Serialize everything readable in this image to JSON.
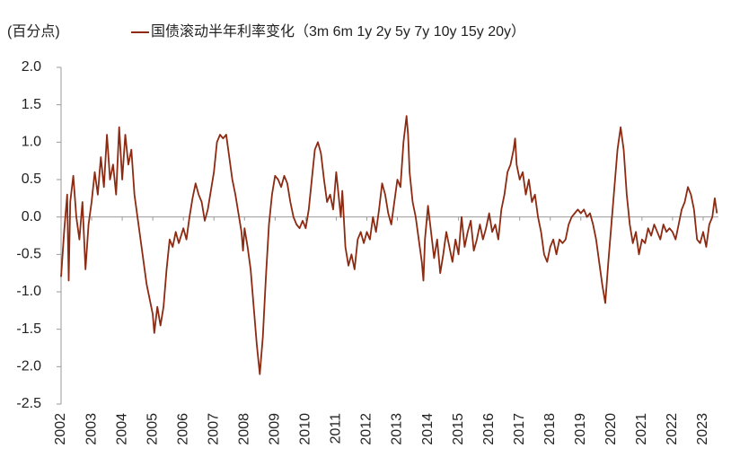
{
  "chart_data": {
    "type": "line",
    "y_label": "(百分点)",
    "series": [
      {
        "name": "国债滚动半年利率变化（3m 6m 1y 2y 5y 7y 10y 15y 20y）",
        "color": "#8c2a12",
        "x": [
          2002.0,
          2002.1,
          2002.2,
          2002.25,
          2002.3,
          2002.4,
          2002.5,
          2002.6,
          2002.7,
          2002.8,
          2002.9,
          2003.0,
          2003.1,
          2003.2,
          2003.3,
          2003.4,
          2003.5,
          2003.6,
          2003.7,
          2003.8,
          2003.9,
          2004.0,
          2004.1,
          2004.2,
          2004.3,
          2004.4,
          2004.5,
          2004.6,
          2004.7,
          2004.8,
          2004.9,
          2005.0,
          2005.05,
          2005.15,
          2005.25,
          2005.35,
          2005.45,
          2005.55,
          2005.65,
          2005.75,
          2005.85,
          2006.0,
          2006.1,
          2006.2,
          2006.3,
          2006.4,
          2006.5,
          2006.6,
          2006.7,
          2006.8,
          2006.9,
          2007.0,
          2007.1,
          2007.2,
          2007.3,
          2007.4,
          2007.5,
          2007.6,
          2007.7,
          2007.8,
          2007.9,
          2007.95,
          2008.0,
          2008.1,
          2008.2,
          2008.3,
          2008.4,
          2008.5,
          2008.6,
          2008.7,
          2008.8,
          2008.9,
          2009.0,
          2009.1,
          2009.2,
          2009.3,
          2009.4,
          2009.5,
          2009.6,
          2009.7,
          2009.8,
          2009.9,
          2010.0,
          2010.1,
          2010.2,
          2010.3,
          2010.4,
          2010.5,
          2010.6,
          2010.7,
          2010.8,
          2010.9,
          2011.0,
          2011.1,
          2011.15,
          2011.2,
          2011.3,
          2011.4,
          2011.5,
          2011.6,
          2011.7,
          2011.8,
          2011.9,
          2012.0,
          2012.1,
          2012.2,
          2012.3,
          2012.4,
          2012.5,
          2012.6,
          2012.7,
          2012.8,
          2012.9,
          2013.0,
          2013.1,
          2013.2,
          2013.3,
          2013.35,
          2013.4,
          2013.5,
          2013.6,
          2013.7,
          2013.8,
          2013.85,
          2013.9,
          2014.0,
          2014.1,
          2014.2,
          2014.3,
          2014.4,
          2014.5,
          2014.6,
          2014.7,
          2014.8,
          2014.9,
          2015.0,
          2015.1,
          2015.2,
          2015.3,
          2015.4,
          2015.5,
          2015.6,
          2015.7,
          2015.8,
          2015.9,
          2016.0,
          2016.1,
          2016.2,
          2016.3,
          2016.4,
          2016.5,
          2016.6,
          2016.7,
          2016.8,
          2016.85,
          2016.9,
          2017.0,
          2017.1,
          2017.2,
          2017.3,
          2017.4,
          2017.5,
          2017.6,
          2017.7,
          2017.8,
          2017.9,
          2018.0,
          2018.1,
          2018.2,
          2018.3,
          2018.4,
          2018.5,
          2018.6,
          2018.7,
          2018.8,
          2018.9,
          2019.0,
          2019.1,
          2019.2,
          2019.3,
          2019.4,
          2019.5,
          2019.6,
          2019.7,
          2019.8,
          2019.9,
          2020.0,
          2020.1,
          2020.2,
          2020.3,
          2020.4,
          2020.5,
          2020.6,
          2020.7,
          2020.8,
          2020.9,
          2021.0,
          2021.1,
          2021.2,
          2021.3,
          2021.4,
          2021.5,
          2021.6,
          2021.7,
          2021.8,
          2021.9,
          2022.0,
          2022.1,
          2022.2,
          2022.3,
          2022.4,
          2022.5,
          2022.6,
          2022.7,
          2022.8,
          2022.9,
          2023.0,
          2023.1,
          2023.2,
          2023.3,
          2023.38,
          2023.45
        ],
        "values": [
          -0.8,
          -0.2,
          0.3,
          -0.85,
          0.2,
          0.55,
          0.0,
          -0.3,
          0.2,
          -0.7,
          -0.1,
          0.2,
          0.6,
          0.3,
          0.8,
          0.4,
          1.1,
          0.5,
          0.7,
          0.3,
          1.2,
          0.5,
          1.1,
          0.7,
          0.9,
          0.3,
          0.0,
          -0.3,
          -0.6,
          -0.9,
          -1.1,
          -1.3,
          -1.55,
          -1.2,
          -1.45,
          -1.2,
          -0.7,
          -0.3,
          -0.4,
          -0.2,
          -0.35,
          -0.15,
          -0.3,
          0.0,
          0.25,
          0.45,
          0.3,
          0.2,
          -0.05,
          0.1,
          0.35,
          0.6,
          1.0,
          1.1,
          1.05,
          1.1,
          0.8,
          0.5,
          0.3,
          0.05,
          -0.2,
          -0.45,
          -0.15,
          -0.4,
          -0.7,
          -1.2,
          -1.7,
          -2.1,
          -1.6,
          -0.8,
          -0.1,
          0.3,
          0.55,
          0.5,
          0.4,
          0.55,
          0.45,
          0.2,
          0.0,
          -0.1,
          -0.15,
          -0.05,
          -0.15,
          0.1,
          0.5,
          0.9,
          1.0,
          0.85,
          0.5,
          0.2,
          0.3,
          0.1,
          0.6,
          0.2,
          0.0,
          0.35,
          -0.4,
          -0.65,
          -0.5,
          -0.7,
          -0.3,
          -0.2,
          -0.35,
          -0.2,
          -0.3,
          0.0,
          -0.2,
          0.1,
          0.45,
          0.3,
          0.05,
          -0.1,
          0.2,
          0.5,
          0.4,
          1.0,
          1.35,
          1.1,
          0.6,
          0.2,
          0.0,
          -0.3,
          -0.6,
          -0.85,
          -0.3,
          0.15,
          -0.2,
          -0.55,
          -0.3,
          -0.75,
          -0.5,
          -0.2,
          -0.4,
          -0.6,
          -0.3,
          -0.5,
          0.0,
          -0.4,
          -0.2,
          -0.05,
          -0.45,
          -0.3,
          -0.1,
          -0.3,
          -0.15,
          0.05,
          -0.2,
          -0.1,
          -0.3,
          0.1,
          0.3,
          0.6,
          0.7,
          0.9,
          1.05,
          0.7,
          0.5,
          0.6,
          0.3,
          0.5,
          0.2,
          0.3,
          0.0,
          -0.2,
          -0.5,
          -0.6,
          -0.4,
          -0.3,
          -0.5,
          -0.3,
          -0.35,
          -0.3,
          -0.1,
          0.0,
          0.05,
          0.1,
          0.05,
          0.1,
          0.0,
          0.05,
          -0.1,
          -0.3,
          -0.6,
          -0.9,
          -1.15,
          -0.6,
          -0.1,
          0.4,
          0.9,
          1.2,
          0.9,
          0.3,
          -0.1,
          -0.35,
          -0.2,
          -0.5,
          -0.3,
          -0.35,
          -0.15,
          -0.25,
          -0.1,
          -0.2,
          -0.3,
          -0.1,
          -0.2,
          -0.15,
          -0.2,
          -0.3,
          -0.1,
          0.1,
          0.2,
          0.4,
          0.3,
          0.1,
          -0.3,
          -0.35,
          -0.2,
          -0.4,
          -0.1,
          0.0,
          0.25,
          0.05
        ]
      }
    ],
    "xlim": [
      2002,
      2023.5
    ],
    "xticks": [
      2002,
      2003,
      2004,
      2005,
      2006,
      2007,
      2008,
      2009,
      2010,
      2011,
      2012,
      2013,
      2014,
      2015,
      2016,
      2017,
      2018,
      2019,
      2020,
      2021,
      2022,
      2023
    ],
    "ylim": [
      -2.5,
      2.0
    ],
    "yticks": [
      {
        "value": 2.0,
        "label": "2.0"
      },
      1.5,
      {
        "value": 1.0,
        "label": "1.0"
      },
      0.5,
      {
        "value": 0.0,
        "label": "0.0"
      },
      -0.5,
      {
        "value": -1.0,
        "label": "-1.0"
      },
      -1.5,
      {
        "value": -2.0,
        "label": "-2.0"
      },
      -2.5
    ]
  }
}
